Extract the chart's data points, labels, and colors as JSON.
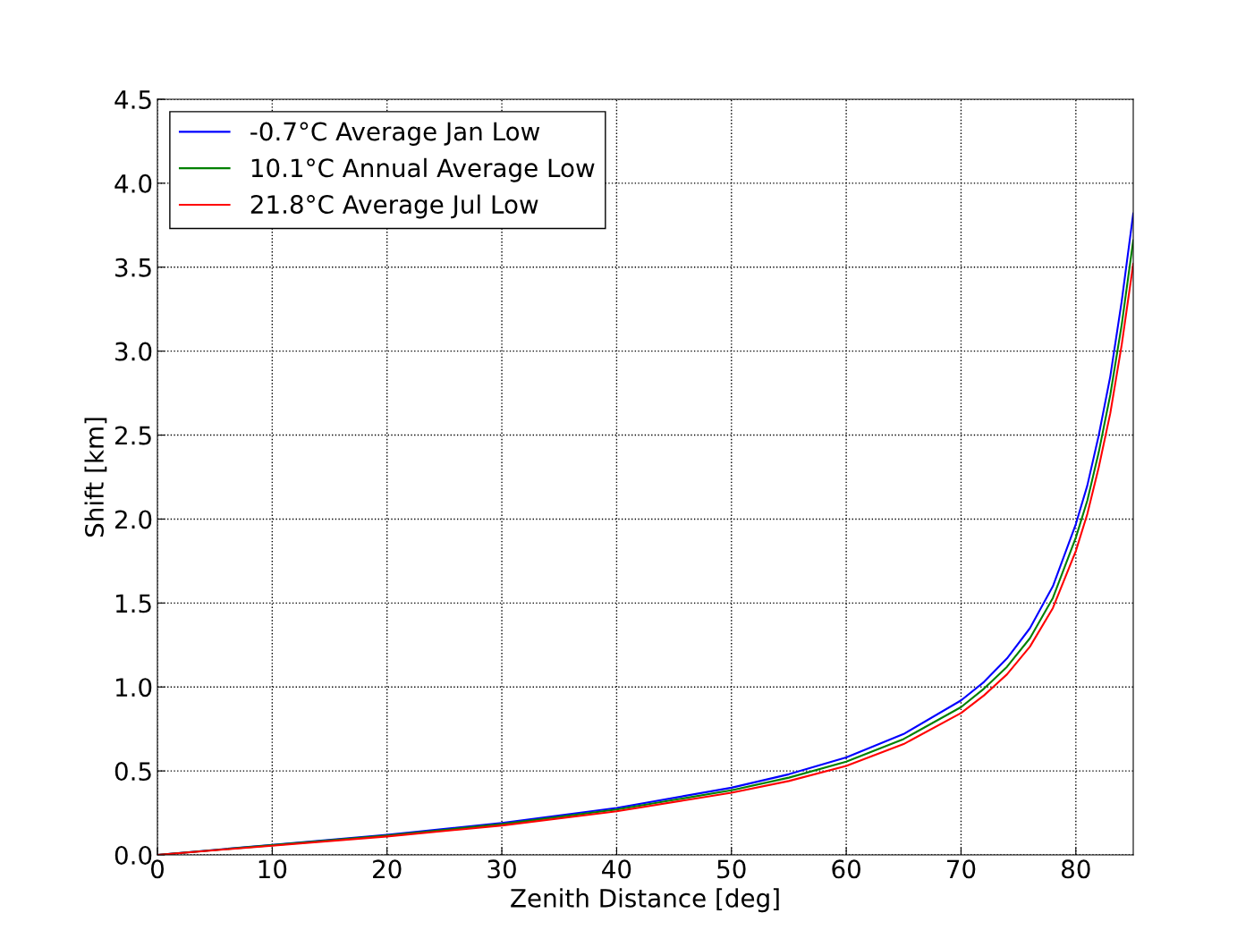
{
  "chart_data": {
    "type": "line",
    "xlabel": "Zenith Distance [deg]",
    "ylabel": "Shift [km]",
    "x": [
      0,
      10,
      20,
      30,
      40,
      50,
      55,
      60,
      65,
      70,
      72,
      74,
      76,
      78,
      80,
      81,
      82,
      83,
      84,
      85
    ],
    "series": [
      {
        "name": "-0.7°C Average Jan Low",
        "color": "#0000ff",
        "values": [
          0,
          0.06,
          0.12,
          0.19,
          0.28,
          0.4,
          0.48,
          0.58,
          0.72,
          0.92,
          1.03,
          1.17,
          1.35,
          1.6,
          1.97,
          2.2,
          2.5,
          2.85,
          3.3,
          3.82
        ]
      },
      {
        "name": "10.1°C Annual Average Low",
        "color": "#008000",
        "values": [
          0,
          0.058,
          0.115,
          0.183,
          0.27,
          0.385,
          0.46,
          0.555,
          0.69,
          0.88,
          0.99,
          1.12,
          1.29,
          1.53,
          1.89,
          2.11,
          2.4,
          2.74,
          3.16,
          3.66
        ]
      },
      {
        "name": "21.8°C Average Jul Low",
        "color": "#ff0000",
        "values": [
          0,
          0.055,
          0.11,
          0.175,
          0.26,
          0.37,
          0.44,
          0.53,
          0.66,
          0.845,
          0.95,
          1.075,
          1.24,
          1.47,
          1.81,
          2.03,
          2.31,
          2.63,
          3.04,
          3.52
        ]
      }
    ],
    "xlim": [
      0,
      85
    ],
    "xticks": [
      0,
      10,
      20,
      30,
      40,
      50,
      60,
      70,
      80
    ],
    "ylim": [
      0,
      4.5
    ],
    "yticks": [
      {
        "value": 0,
        "label": "0.0"
      },
      0.5,
      {
        "value": 1,
        "label": "1.0"
      },
      1.5,
      {
        "value": 2,
        "label": "2.0"
      },
      2.5,
      {
        "value": 3,
        "label": "3.0"
      },
      3.5,
      {
        "value": 4,
        "label": "4.0"
      },
      4.5
    ],
    "grid": true,
    "legend": "top left",
    "line_style": "solid",
    "marker": "none"
  }
}
